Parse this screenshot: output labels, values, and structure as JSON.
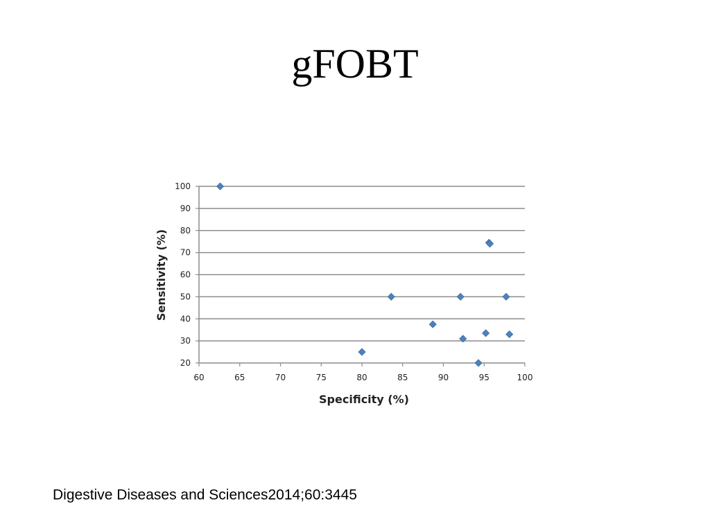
{
  "slide": {
    "title": "gFOBT",
    "citation": "Digestive Diseases and Sciences2014;60:3445"
  },
  "chart_data": {
    "type": "scatter",
    "xlabel": "Specificity (%)",
    "ylabel": "Sensitivity (%)",
    "xlim": [
      60,
      100
    ],
    "ylim": [
      20,
      100
    ],
    "xticks": [
      60,
      65,
      70,
      75,
      80,
      85,
      90,
      95,
      100
    ],
    "yticks": [
      20,
      30,
      40,
      50,
      60,
      70,
      80,
      90,
      100
    ],
    "grid": "horizontal",
    "marker": "diamond",
    "marker_color": "#4f81bd",
    "series": [
      {
        "points": [
          {
            "x": 62.6,
            "y": 100
          },
          {
            "x": 80.0,
            "y": 25
          },
          {
            "x": 83.6,
            "y": 50
          },
          {
            "x": 88.7,
            "y": 37.5
          },
          {
            "x": 92.1,
            "y": 50
          },
          {
            "x": 92.4,
            "y": 31
          },
          {
            "x": 94.3,
            "y": 20
          },
          {
            "x": 95.2,
            "y": 33.5
          },
          {
            "x": 95.6,
            "y": 74.5
          },
          {
            "x": 95.7,
            "y": 74
          },
          {
            "x": 97.7,
            "y": 50
          },
          {
            "x": 98.1,
            "y": 33
          }
        ]
      }
    ]
  }
}
